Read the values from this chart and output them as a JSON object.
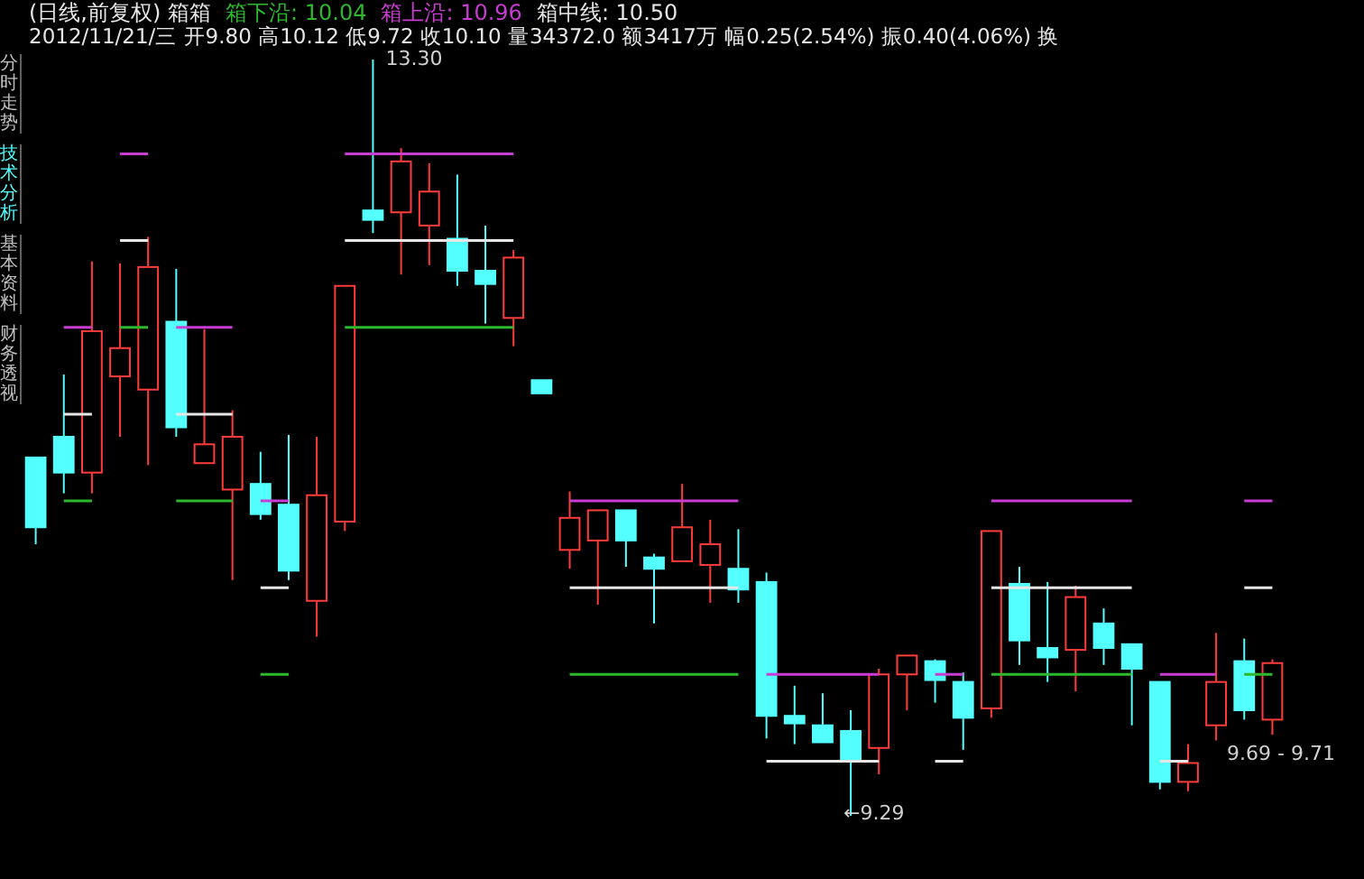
{
  "chart_data": {
    "type": "candlestick",
    "title": "(日线,前复权) 箱箱",
    "subtitle": "2012/11/21/三 开9.80 高10.12 低9.72 收10.10 量34372.0 额3417万 幅0.25(2.54%) 振0.40(4.06%) 换",
    "categories": [
      null,
      null,
      null,
      null,
      null,
      null,
      null,
      null,
      null,
      null,
      null,
      null,
      null,
      null,
      null,
      null,
      null,
      null,
      null,
      null,
      null,
      null,
      null,
      null,
      null,
      null,
      null,
      null,
      null,
      null,
      null,
      null,
      null,
      null,
      null,
      null,
      null,
      null,
      null,
      null,
      null,
      null,
      null,
      null,
      null
    ],
    "ohlc": [
      [
        11.19,
        11.19,
        10.73,
        10.82
      ],
      [
        11.3,
        11.63,
        11.0,
        11.11
      ],
      [
        11.11,
        12.23,
        11.0,
        11.86
      ],
      [
        11.62,
        12.22,
        11.3,
        11.77
      ],
      [
        11.55,
        12.36,
        11.15,
        12.2
      ],
      [
        11.91,
        12.19,
        11.3,
        11.35
      ],
      [
        11.16,
        11.87,
        11.16,
        11.26
      ],
      [
        11.02,
        11.44,
        10.54,
        11.3
      ],
      [
        11.05,
        11.22,
        10.86,
        10.89
      ],
      [
        10.94,
        11.31,
        10.54,
        10.59
      ],
      [
        10.43,
        11.3,
        10.24,
        10.99
      ],
      [
        10.85,
        12.1,
        10.8,
        12.1
      ],
      [
        12.5,
        13.3,
        12.38,
        12.45
      ],
      [
        12.49,
        12.83,
        12.16,
        12.76
      ],
      [
        12.42,
        12.75,
        12.21,
        12.6
      ],
      [
        12.35,
        12.69,
        12.1,
        12.18
      ],
      [
        12.18,
        12.42,
        11.9,
        12.11
      ],
      [
        11.93,
        12.29,
        11.78,
        12.25
      ],
      [
        11.6,
        11.6,
        11.53,
        11.53
      ],
      [
        10.7,
        11.01,
        10.6,
        10.87
      ],
      [
        10.75,
        10.91,
        10.41,
        10.91
      ],
      [
        10.91,
        10.91,
        10.61,
        10.75
      ],
      [
        10.66,
        10.68,
        10.31,
        10.6
      ],
      [
        10.64,
        11.05,
        10.64,
        10.82
      ],
      [
        10.62,
        10.86,
        10.42,
        10.73
      ],
      [
        10.6,
        10.81,
        10.42,
        10.49
      ],
      [
        10.53,
        10.58,
        9.7,
        9.82
      ],
      [
        9.82,
        9.98,
        9.67,
        9.78
      ],
      [
        9.77,
        9.94,
        9.68,
        9.68
      ],
      [
        9.74,
        9.85,
        9.29,
        9.58
      ],
      [
        9.65,
        10.07,
        9.51,
        10.04
      ],
      [
        10.04,
        10.14,
        9.85,
        10.14
      ],
      [
        10.11,
        10.12,
        9.89,
        10.01
      ],
      [
        10.0,
        10.05,
        9.64,
        9.81
      ],
      [
        9.86,
        10.8,
        9.81,
        10.8
      ],
      [
        10.52,
        10.61,
        10.09,
        10.22
      ],
      [
        10.18,
        10.53,
        10.0,
        10.13
      ],
      [
        10.17,
        10.51,
        9.95,
        10.45
      ],
      [
        10.31,
        10.39,
        10.09,
        10.18
      ],
      [
        10.2,
        10.2,
        9.77,
        10.07
      ],
      [
        10.0,
        10.0,
        9.43,
        9.47
      ],
      [
        9.47,
        9.67,
        9.42,
        9.57
      ],
      [
        9.77,
        10.26,
        9.69,
        10.0
      ],
      [
        10.11,
        10.23,
        9.8,
        9.85
      ],
      [
        9.8,
        10.12,
        9.72,
        10.1
      ]
    ],
    "colors": [
      "#54ffff",
      "#54ffff",
      "#ff3c3c",
      "#ff3c3c",
      "#ff3c3c",
      "#54ffff",
      "#ff3c3c",
      "#ff3c3c",
      "#54ffff",
      "#54ffff",
      "#ff3c3c",
      "#ff3c3c",
      "#54ffff",
      "#ff3c3c",
      "#ff3c3c",
      "#54ffff",
      "#54ffff",
      "#ff3c3c",
      "#54ffff",
      "#ff3c3c",
      "#ff3c3c",
      "#54ffff",
      "#54ffff",
      "#ff3c3c",
      "#ff3c3c",
      "#54ffff",
      "#54ffff",
      "#54ffff",
      "#54ffff",
      "#54ffff",
      "#ff3c3c",
      "#ff3c3c",
      "#54ffff",
      "#54ffff",
      "#ff3c3c",
      "#54ffff",
      "#54ffff",
      "#ff3c3c",
      "#54ffff",
      "#54ffff",
      "#54ffff",
      "#ff3c3c",
      "#ff3c3c",
      "#54ffff",
      "#ff3c3c"
    ],
    "series": [
      {
        "name": "箱下沿: 10.04",
        "type": "line",
        "color": "#2eb82e",
        "values": [
          null,
          10.96,
          10.96,
          11.88,
          11.88,
          10.96,
          10.96,
          10.96,
          10.04,
          10.04,
          null,
          11.88,
          11.88,
          11.88,
          11.88,
          11.88,
          11.88,
          11.88,
          null,
          10.04,
          10.04,
          10.04,
          10.04,
          10.04,
          10.04,
          10.04,
          null,
          null,
          null,
          null,
          null,
          null,
          null,
          null,
          10.04,
          10.04,
          10.04,
          10.04,
          10.04,
          10.04,
          null,
          null,
          null,
          10.04,
          10.04
        ]
      },
      {
        "name": "箱上沿: 10.96",
        "type": "line",
        "color": "#c83cd2",
        "values": [
          null,
          11.88,
          11.88,
          12.8,
          12.8,
          11.88,
          11.88,
          11.88,
          10.96,
          10.96,
          null,
          12.8,
          12.8,
          12.8,
          12.8,
          12.8,
          12.8,
          12.8,
          null,
          10.96,
          10.96,
          10.96,
          10.96,
          10.96,
          10.96,
          10.96,
          10.04,
          10.04,
          10.04,
          10.04,
          10.04,
          null,
          10.04,
          10.04,
          10.96,
          10.96,
          10.96,
          10.96,
          10.96,
          10.96,
          10.04,
          10.04,
          10.04,
          10.96,
          10.96
        ]
      },
      {
        "name": "箱中线: 10.50",
        "type": "line",
        "color": "#e6e6e6",
        "values": [
          null,
          11.42,
          11.42,
          12.34,
          12.34,
          11.42,
          11.42,
          11.42,
          10.5,
          10.5,
          null,
          12.34,
          12.34,
          12.34,
          12.34,
          12.34,
          12.34,
          12.34,
          null,
          10.5,
          10.5,
          10.5,
          10.5,
          10.5,
          10.5,
          10.5,
          9.58,
          9.58,
          9.58,
          9.58,
          9.58,
          null,
          9.58,
          9.58,
          10.5,
          10.5,
          10.5,
          10.5,
          10.5,
          10.5,
          9.58,
          9.58,
          null,
          10.5,
          10.5
        ]
      }
    ],
    "legend": "top",
    "annotations": [
      "13.30",
      "←9.29",
      "9.69 - 9.71",
      "分时走势",
      "技术分析",
      "基本资料",
      "财务透视"
    ]
  }
}
